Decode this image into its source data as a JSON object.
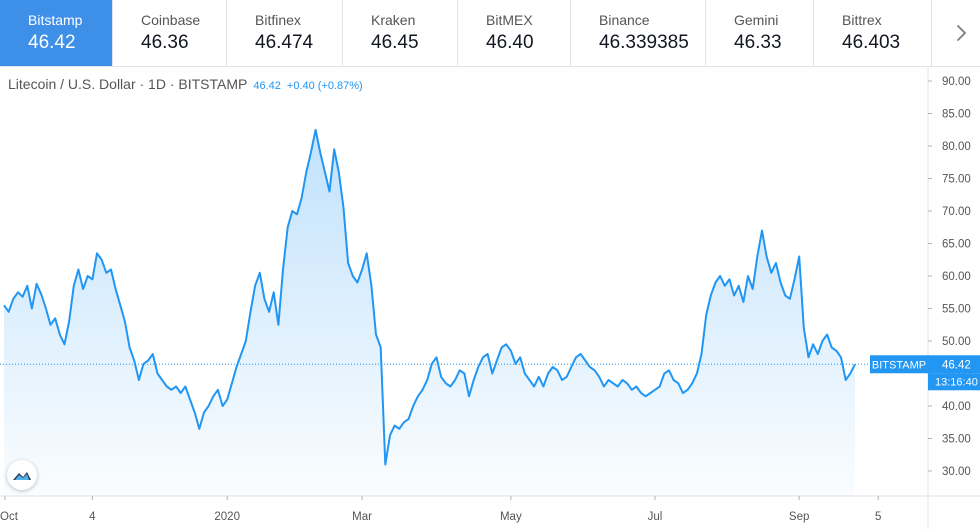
{
  "exchanges": [
    {
      "name": "Bitstamp",
      "price": "46.42",
      "active": true
    },
    {
      "name": "Coinbase",
      "price": "46.36",
      "active": false
    },
    {
      "name": "Bitfinex",
      "price": "46.474",
      "active": false
    },
    {
      "name": "Kraken",
      "price": "46.45",
      "active": false
    },
    {
      "name": "BitMEX",
      "price": "46.40",
      "active": false
    },
    {
      "name": "Binance",
      "price": "46.339385",
      "active": false
    },
    {
      "name": "Gemini",
      "price": "46.33",
      "active": false
    },
    {
      "name": "Bittrex",
      "price": "46.403",
      "active": false
    }
  ],
  "next_icon": "chevron-right-icon",
  "legend": {
    "title": "Litecoin / U.S. Dollar · 1D · BITSTAMP",
    "last": "46.42",
    "change": "+0.40 (+0.87%)"
  },
  "price_label": {
    "source": "BITSTAMP",
    "value": "46.42",
    "countdown": "13:16:40"
  },
  "logo_icon": "tradingview-logo-icon",
  "colors": {
    "accent": "#3d8fe8",
    "line": "#2196f3",
    "area": "#2196f3",
    "text": "#555555"
  },
  "chart_data": {
    "type": "area",
    "ylim": [
      26.5,
      91.5
    ],
    "y_ticks": [
      "30.00",
      "35.00",
      "40.00",
      "45.00",
      "50.00",
      "55.00",
      "60.00",
      "65.00",
      "70.00",
      "75.00",
      "80.00",
      "85.00",
      "90.00"
    ],
    "x_ticks": [
      {
        "label": "Oct",
        "t": 0.2
      },
      {
        "label": "4",
        "t": 19
      },
      {
        "label": "2020",
        "t": 48
      },
      {
        "label": "Mar",
        "t": 77
      },
      {
        "label": "May",
        "t": 109
      },
      {
        "label": "Jul",
        "t": 140
      },
      {
        "label": "Sep",
        "t": 171
      },
      {
        "label": "5",
        "t": 188
      }
    ],
    "points": [
      [
        0,
        55.5
      ],
      [
        1,
        54.5
      ],
      [
        2,
        56.5
      ],
      [
        3,
        57.5
      ],
      [
        4,
        56.8
      ],
      [
        5,
        58.5
      ],
      [
        6,
        55.0
      ],
      [
        7,
        58.8
      ],
      [
        8,
        57.2
      ],
      [
        9,
        55.0
      ],
      [
        10,
        52.5
      ],
      [
        11,
        53.5
      ],
      [
        12,
        51.0
      ],
      [
        13,
        49.5
      ],
      [
        14,
        53.0
      ],
      [
        15,
        58.5
      ],
      [
        16,
        61.0
      ],
      [
        17,
        58.0
      ],
      [
        18,
        60.0
      ],
      [
        19,
        59.5
      ],
      [
        20,
        63.5
      ],
      [
        21,
        62.5
      ],
      [
        22,
        60.5
      ],
      [
        23,
        61.0
      ],
      [
        24,
        58.0
      ],
      [
        25,
        55.5
      ],
      [
        26,
        53.0
      ],
      [
        27,
        49.0
      ],
      [
        28,
        47.0
      ],
      [
        29,
        44.0
      ],
      [
        30,
        46.5
      ],
      [
        31,
        47.0
      ],
      [
        32,
        48.0
      ],
      [
        33,
        45.0
      ],
      [
        34,
        44.0
      ],
      [
        35,
        43.0
      ],
      [
        36,
        42.5
      ],
      [
        37,
        43.0
      ],
      [
        38,
        42.0
      ],
      [
        39,
        43.0
      ],
      [
        40,
        41.0
      ],
      [
        41,
        39.0
      ],
      [
        42,
        36.5
      ],
      [
        43,
        39.0
      ],
      [
        44,
        40.0
      ],
      [
        45,
        41.5
      ],
      [
        46,
        42.5
      ],
      [
        47,
        40.0
      ],
      [
        48,
        41.0
      ],
      [
        49,
        43.5
      ],
      [
        50,
        46.0
      ],
      [
        51,
        48.0
      ],
      [
        52,
        50.0
      ],
      [
        53,
        54.5
      ],
      [
        54,
        58.5
      ],
      [
        55,
        60.5
      ],
      [
        56,
        56.5
      ],
      [
        57,
        54.5
      ],
      [
        58,
        57.5
      ],
      [
        59,
        52.5
      ],
      [
        60,
        61.0
      ],
      [
        61,
        67.5
      ],
      [
        62,
        70.0
      ],
      [
        63,
        69.5
      ],
      [
        64,
        72.0
      ],
      [
        65,
        76.0
      ],
      [
        66,
        79.0
      ],
      [
        67,
        82.5
      ],
      [
        68,
        79.0
      ],
      [
        69,
        76.0
      ],
      [
        70,
        73.0
      ],
      [
        71,
        79.5
      ],
      [
        72,
        76.0
      ],
      [
        73,
        70.5
      ],
      [
        74,
        62.0
      ],
      [
        75,
        60.0
      ],
      [
        76,
        59.0
      ],
      [
        77,
        61.0
      ],
      [
        78,
        63.5
      ],
      [
        79,
        58.5
      ],
      [
        80,
        51.0
      ],
      [
        81,
        49.0
      ],
      [
        82,
        31.0
      ],
      [
        83,
        35.5
      ],
      [
        84,
        37.0
      ],
      [
        85,
        36.5
      ],
      [
        86,
        37.5
      ],
      [
        87,
        38.0
      ],
      [
        88,
        40.0
      ],
      [
        89,
        41.5
      ],
      [
        90,
        42.5
      ],
      [
        91,
        44.0
      ],
      [
        92,
        46.5
      ],
      [
        93,
        47.5
      ],
      [
        94,
        44.5
      ],
      [
        95,
        43.5
      ],
      [
        96,
        43.0
      ],
      [
        97,
        44.0
      ],
      [
        98,
        45.5
      ],
      [
        99,
        45.0
      ],
      [
        100,
        41.5
      ],
      [
        101,
        44.0
      ],
      [
        102,
        46.0
      ],
      [
        103,
        47.5
      ],
      [
        104,
        48.0
      ],
      [
        105,
        45.0
      ],
      [
        106,
        47.0
      ],
      [
        107,
        49.0
      ],
      [
        108,
        49.5
      ],
      [
        109,
        48.5
      ],
      [
        110,
        46.5
      ],
      [
        111,
        47.5
      ],
      [
        112,
        45.0
      ],
      [
        113,
        44.0
      ],
      [
        114,
        43.0
      ],
      [
        115,
        44.5
      ],
      [
        116,
        43.0
      ],
      [
        117,
        45.0
      ],
      [
        118,
        46.0
      ],
      [
        119,
        45.5
      ],
      [
        120,
        44.0
      ],
      [
        121,
        44.5
      ],
      [
        122,
        46.0
      ],
      [
        123,
        47.5
      ],
      [
        124,
        48.0
      ],
      [
        125,
        47.0
      ],
      [
        126,
        46.0
      ],
      [
        127,
        45.5
      ],
      [
        128,
        44.5
      ],
      [
        129,
        43.0
      ],
      [
        130,
        44.0
      ],
      [
        131,
        43.5
      ],
      [
        132,
        43.0
      ],
      [
        133,
        44.0
      ],
      [
        134,
        43.5
      ],
      [
        135,
        42.5
      ],
      [
        136,
        43.0
      ],
      [
        137,
        42.0
      ],
      [
        138,
        41.5
      ],
      [
        139,
        42.0
      ],
      [
        140,
        42.5
      ],
      [
        141,
        43.0
      ],
      [
        142,
        45.0
      ],
      [
        143,
        45.5
      ],
      [
        144,
        44.0
      ],
      [
        145,
        43.5
      ],
      [
        146,
        42.0
      ],
      [
        147,
        42.5
      ],
      [
        148,
        43.5
      ],
      [
        149,
        45.0
      ],
      [
        150,
        48.0
      ],
      [
        151,
        54.0
      ],
      [
        152,
        57.0
      ],
      [
        153,
        59.0
      ],
      [
        154,
        60.0
      ],
      [
        155,
        58.5
      ],
      [
        156,
        59.5
      ],
      [
        157,
        57.0
      ],
      [
        158,
        58.5
      ],
      [
        159,
        56.0
      ],
      [
        160,
        60.0
      ],
      [
        161,
        58.0
      ],
      [
        162,
        63.0
      ],
      [
        163,
        67.0
      ],
      [
        164,
        63.0
      ],
      [
        165,
        60.5
      ],
      [
        166,
        62.0
      ],
      [
        167,
        59.0
      ],
      [
        168,
        57.0
      ],
      [
        169,
        56.5
      ],
      [
        170,
        59.5
      ],
      [
        171,
        63.0
      ],
      [
        172,
        52.0
      ],
      [
        173,
        47.5
      ],
      [
        174,
        49.5
      ],
      [
        175,
        48.0
      ],
      [
        176,
        50.0
      ],
      [
        177,
        51.0
      ],
      [
        178,
        49.0
      ],
      [
        179,
        48.5
      ],
      [
        180,
        47.5
      ],
      [
        181,
        44.0
      ],
      [
        182,
        45.0
      ],
      [
        183,
        46.42
      ]
    ]
  }
}
